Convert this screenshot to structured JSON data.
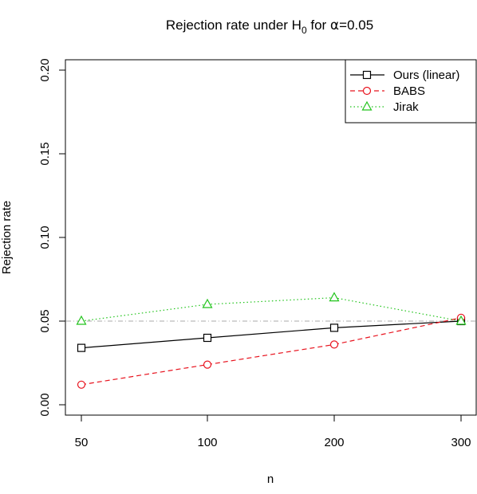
{
  "chart_data": {
    "type": "line",
    "title_main": "Rejection rate under H",
    "title_sub": "0",
    "title_tail": " for ",
    "title_alpha": "α",
    "title_value": "=0.05",
    "xlabel": "n",
    "ylabel": "Rejection rate",
    "categories": [
      "50",
      "100",
      "200",
      "300"
    ],
    "ylim": [
      0,
      0.2
    ],
    "yticks": [
      0.0,
      0.05,
      0.1,
      0.15,
      0.2
    ],
    "ytick_labels": [
      "0.00",
      "0.05",
      "0.10",
      "0.15",
      "0.20"
    ],
    "reference_line": 0.05,
    "legend_position": "top-right",
    "series": [
      {
        "name": "Ours (linear)",
        "values": [
          0.034,
          0.04,
          0.046,
          0.05
        ],
        "color": "#000000",
        "marker": "square",
        "linestyle": "solid"
      },
      {
        "name": "BABS",
        "values": [
          0.012,
          0.024,
          0.036,
          0.052
        ],
        "color": "#e8141f",
        "marker": "circle",
        "linestyle": "dashed"
      },
      {
        "name": "Jirak",
        "values": [
          0.05,
          0.06,
          0.064,
          0.05
        ],
        "color": "#22c41c",
        "marker": "triangle",
        "linestyle": "dotted"
      }
    ]
  }
}
